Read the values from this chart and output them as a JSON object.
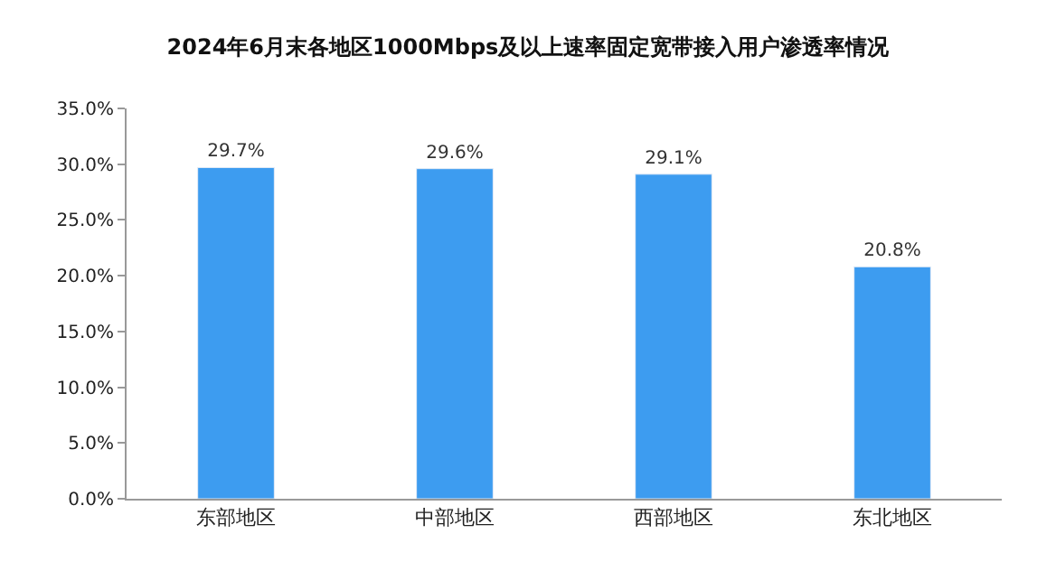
{
  "chart_data": {
    "type": "bar",
    "title": "2024年6月末各地区1000Mbps及以上速率固定宽带接入用户渗透率情况",
    "categories": [
      "东部地区",
      "中部地区",
      "西部地区",
      "东北地区"
    ],
    "values": [
      29.7,
      29.6,
      29.1,
      20.8
    ],
    "value_labels": [
      "29.7%",
      "29.6%",
      "29.1%",
      "20.8%"
    ],
    "color": "#3d9cf0",
    "ylim": [
      0,
      35
    ],
    "yticks": [
      {
        "value": 0,
        "label": "0.0%"
      },
      {
        "value": 5,
        "label": "5.0%"
      },
      {
        "value": 10,
        "label": "10.0%"
      },
      {
        "value": 15,
        "label": "15.0%"
      },
      {
        "value": 20,
        "label": "20.0%"
      },
      {
        "value": 25,
        "label": "25.0%"
      },
      {
        "value": 30,
        "label": "30.0%"
      },
      {
        "value": 35,
        "label": "35.0%"
      }
    ],
    "legend": false
  }
}
